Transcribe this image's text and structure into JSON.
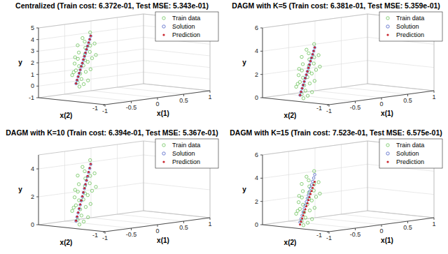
{
  "chart_data": [
    {
      "type": "scatter3d",
      "title": "Centralized (Train cost: 6.372e-01, Test MSE: 5.343e-01)",
      "xlabel": "x(1)",
      "zlabel": "x(2)",
      "ylabel": "y",
      "xlim": [
        -1,
        1
      ],
      "xticks": [
        -1,
        -0.5,
        0,
        0.5,
        1
      ],
      "zlim": [
        -1,
        1
      ],
      "zticks": [
        -1
      ],
      "ylim": [
        -1,
        5
      ],
      "yticks": [
        -1,
        0,
        1,
        2,
        3,
        4,
        5
      ],
      "grid": true,
      "legend": "upper right",
      "series": [
        {
          "name": "Train data",
          "color": "#6cc35a",
          "marker": "circle",
          "x": [
            -0.98,
            -0.95,
            -0.93,
            -0.96,
            -0.91,
            -0.9,
            -0.88,
            -0.92,
            -0.87,
            -0.85,
            -0.86,
            -0.83,
            -0.84,
            -0.81,
            -0.8,
            -0.82,
            -0.78,
            -0.77,
            -0.79,
            -0.75,
            -0.74,
            -0.76,
            -0.72,
            -0.71,
            -0.73,
            -0.69,
            -0.68,
            -0.7,
            -0.66,
            -0.65
          ],
          "z": [
            -0.2,
            -0.1,
            -0.25,
            0.05,
            -0.15,
            0.1,
            -0.3,
            0.0,
            -0.05,
            0.15,
            -0.2,
            0.05,
            -0.1,
            0.2,
            -0.25,
            0.1,
            -0.05,
            0.15,
            -0.15,
            0.0,
            -0.2,
            0.2,
            -0.1,
            0.05,
            -0.3,
            0.1,
            -0.05,
            0.15,
            -0.15,
            0.0
          ],
          "values": [
            0.3,
            0.6,
            0.5,
            1.2,
            0.9,
            1.4,
            0.8,
            1.6,
            1.3,
            2.1,
            1.5,
            1.9,
            2.0,
            2.6,
            1.7,
            2.5,
            2.4,
            3.0,
            2.3,
            2.9,
            2.6,
            3.6,
            3.1,
            3.4,
            2.9,
            3.9,
            3.6,
            4.2,
            3.8,
            4.7
          ]
        },
        {
          "name": "Solution",
          "color": "#4b5fc4",
          "marker": "circle",
          "x": [
            -0.95,
            -0.93,
            -0.91,
            -0.89,
            -0.87,
            -0.85,
            -0.83,
            -0.81,
            -0.79,
            -0.77,
            -0.75,
            -0.73,
            -0.71,
            -0.69,
            -0.67
          ],
          "z": [
            -0.05,
            -0.05,
            -0.05,
            -0.05,
            -0.05,
            -0.05,
            -0.05,
            -0.05,
            -0.05,
            -0.05,
            -0.05,
            -0.05,
            -0.05,
            -0.05,
            -0.05
          ],
          "values": [
            0.5,
            0.78,
            1.06,
            1.34,
            1.62,
            1.9,
            2.18,
            2.46,
            2.74,
            3.02,
            3.3,
            3.58,
            3.86,
            4.14,
            4.42
          ]
        },
        {
          "name": "Prediction",
          "color": "#c8232c",
          "marker": "dot",
          "x": [
            -0.95,
            -0.93,
            -0.91,
            -0.89,
            -0.87,
            -0.85,
            -0.83,
            -0.81,
            -0.79,
            -0.77,
            -0.75,
            -0.73,
            -0.71,
            -0.69,
            -0.67
          ],
          "z": [
            -0.05,
            -0.05,
            -0.05,
            -0.05,
            -0.05,
            -0.05,
            -0.05,
            -0.05,
            -0.05,
            -0.05,
            -0.05,
            -0.05,
            -0.05,
            -0.05,
            -0.05
          ],
          "values": [
            0.52,
            0.8,
            1.08,
            1.36,
            1.64,
            1.92,
            2.2,
            2.48,
            2.76,
            3.04,
            3.32,
            3.6,
            3.88,
            4.16,
            4.44
          ]
        }
      ]
    },
    {
      "type": "scatter3d",
      "title": "DAGM with K=5 (Train cost: 6.381e-01, Test MSE: 5.359e-01)",
      "xlabel": "x(1)",
      "zlabel": "x(2)",
      "ylabel": "y",
      "xlim": [
        -1,
        1
      ],
      "xticks": [
        -1,
        -0.5,
        0,
        0.5,
        1
      ],
      "zlim": [
        -1,
        1
      ],
      "zticks": [
        -1
      ],
      "ylim": [
        0,
        6
      ],
      "yticks": [
        0,
        2,
        4,
        6
      ],
      "grid": true,
      "legend": "upper right",
      "series": [
        {
          "name": "Train data",
          "color": "#6cc35a",
          "marker": "circle",
          "x": [
            -0.98,
            -0.95,
            -0.93,
            -0.96,
            -0.91,
            -0.9,
            -0.88,
            -0.92,
            -0.87,
            -0.85,
            -0.86,
            -0.83,
            -0.84,
            -0.81,
            -0.8,
            -0.82,
            -0.78,
            -0.77,
            -0.79,
            -0.75,
            -0.74,
            -0.76,
            -0.72,
            -0.71,
            -0.73,
            -0.69,
            -0.68,
            -0.7,
            -0.66,
            -0.65
          ],
          "z": [
            -0.2,
            -0.1,
            -0.25,
            0.05,
            -0.15,
            0.1,
            -0.3,
            0.0,
            -0.05,
            0.15,
            -0.2,
            0.05,
            -0.1,
            0.2,
            -0.25,
            0.1,
            -0.05,
            0.15,
            -0.15,
            0.0,
            -0.2,
            0.2,
            -0.1,
            0.05,
            -0.3,
            0.1,
            -0.05,
            0.15,
            -0.15,
            0.0
          ],
          "values": [
            0.3,
            0.6,
            0.5,
            1.2,
            0.9,
            1.4,
            0.8,
            1.6,
            1.3,
            2.1,
            1.5,
            1.9,
            2.0,
            2.6,
            1.7,
            2.5,
            2.4,
            3.0,
            2.3,
            2.9,
            2.6,
            3.6,
            3.1,
            3.4,
            2.9,
            3.9,
            3.6,
            4.2,
            3.8,
            4.7
          ]
        },
        {
          "name": "Solution",
          "color": "#4b5fc4",
          "marker": "circle",
          "x": [
            -0.95,
            -0.93,
            -0.91,
            -0.89,
            -0.87,
            -0.85,
            -0.83,
            -0.81,
            -0.79,
            -0.77,
            -0.75,
            -0.73,
            -0.71,
            -0.69,
            -0.67
          ],
          "z": [
            -0.05,
            -0.05,
            -0.05,
            -0.05,
            -0.05,
            -0.05,
            -0.05,
            -0.05,
            -0.05,
            -0.05,
            -0.05,
            -0.05,
            -0.05,
            -0.05,
            -0.05
          ],
          "values": [
            0.5,
            0.78,
            1.06,
            1.34,
            1.62,
            1.9,
            2.18,
            2.46,
            2.74,
            3.02,
            3.3,
            3.58,
            3.86,
            4.14,
            4.42
          ]
        },
        {
          "name": "Prediction",
          "color": "#c8232c",
          "marker": "dot",
          "x": [
            -0.95,
            -0.93,
            -0.91,
            -0.89,
            -0.87,
            -0.85,
            -0.83,
            -0.81,
            -0.79,
            -0.77,
            -0.75,
            -0.73,
            -0.71,
            -0.69,
            -0.67
          ],
          "z": [
            -0.05,
            -0.05,
            -0.05,
            -0.05,
            -0.05,
            -0.05,
            -0.05,
            -0.05,
            -0.05,
            -0.05,
            -0.05,
            -0.05,
            -0.05,
            -0.05,
            -0.05
          ],
          "values": [
            0.51,
            0.79,
            1.07,
            1.35,
            1.63,
            1.91,
            2.19,
            2.47,
            2.75,
            3.03,
            3.31,
            3.59,
            3.87,
            4.15,
            4.43
          ]
        }
      ]
    },
    {
      "type": "scatter3d",
      "title": "DAGM with K=10 (Train cost: 6.394e-01, Test MSE: 5.367e-01)",
      "xlabel": "x(1)",
      "zlabel": "x(2)",
      "ylabel": "y",
      "xlim": [
        -1,
        1
      ],
      "xticks": [
        -1,
        -0.5,
        0,
        0.5,
        1
      ],
      "zlim": [
        -1,
        1
      ],
      "zticks": [
        -1
      ],
      "ylim": [
        0,
        5
      ],
      "yticks": [
        0,
        2,
        4
      ],
      "grid": true,
      "legend": "upper right",
      "series": [
        {
          "name": "Train data",
          "color": "#6cc35a",
          "marker": "circle",
          "x": [
            -0.98,
            -0.95,
            -0.93,
            -0.96,
            -0.91,
            -0.9,
            -0.88,
            -0.92,
            -0.87,
            -0.85,
            -0.86,
            -0.83,
            -0.84,
            -0.81,
            -0.8,
            -0.82,
            -0.78,
            -0.77,
            -0.79,
            -0.75,
            -0.74,
            -0.76,
            -0.72,
            -0.71,
            -0.73,
            -0.69,
            -0.68,
            -0.7,
            -0.66,
            -0.65
          ],
          "z": [
            -0.2,
            -0.1,
            -0.25,
            0.05,
            -0.15,
            0.1,
            -0.3,
            0.0,
            -0.05,
            0.15,
            -0.2,
            0.05,
            -0.1,
            0.2,
            -0.25,
            0.1,
            -0.05,
            0.15,
            -0.15,
            0.0,
            -0.2,
            0.2,
            -0.1,
            0.05,
            -0.3,
            0.1,
            -0.05,
            0.15,
            -0.15,
            0.0
          ],
          "values": [
            0.3,
            0.6,
            0.5,
            1.2,
            0.9,
            1.4,
            0.8,
            1.6,
            1.3,
            2.1,
            1.5,
            1.9,
            2.0,
            2.6,
            1.7,
            2.5,
            2.4,
            3.0,
            2.3,
            2.9,
            2.6,
            3.6,
            3.1,
            3.4,
            2.9,
            3.9,
            3.6,
            4.2,
            3.8,
            4.7
          ]
        },
        {
          "name": "Solution",
          "color": "#4b5fc4",
          "marker": "circle",
          "x": [
            -0.95,
            -0.93,
            -0.91,
            -0.89,
            -0.87,
            -0.85,
            -0.83,
            -0.81,
            -0.79,
            -0.77,
            -0.75,
            -0.73,
            -0.71,
            -0.69,
            -0.67
          ],
          "z": [
            -0.05,
            -0.05,
            -0.05,
            -0.05,
            -0.05,
            -0.05,
            -0.05,
            -0.05,
            -0.05,
            -0.05,
            -0.05,
            -0.05,
            -0.05,
            -0.05,
            -0.05
          ],
          "values": [
            0.5,
            0.78,
            1.06,
            1.34,
            1.62,
            1.9,
            2.18,
            2.46,
            2.74,
            3.02,
            3.3,
            3.58,
            3.86,
            4.14,
            4.42
          ]
        },
        {
          "name": "Prediction",
          "color": "#c8232c",
          "marker": "dot",
          "x": [
            -0.95,
            -0.93,
            -0.91,
            -0.89,
            -0.87,
            -0.85,
            -0.83,
            -0.81,
            -0.79,
            -0.77,
            -0.75,
            -0.73,
            -0.71,
            -0.69,
            -0.67
          ],
          "z": [
            -0.05,
            -0.05,
            -0.05,
            -0.05,
            -0.05,
            -0.05,
            -0.05,
            -0.05,
            -0.05,
            -0.05,
            -0.05,
            -0.05,
            -0.05,
            -0.05,
            -0.05
          ],
          "values": [
            0.53,
            0.81,
            1.09,
            1.37,
            1.65,
            1.93,
            2.21,
            2.49,
            2.77,
            3.05,
            3.33,
            3.61,
            3.89,
            4.17,
            4.45
          ]
        }
      ]
    },
    {
      "type": "scatter3d",
      "title": "DAGM with K=15 (Train cost: 7.523e-01, Test MSE: 6.575e-01)",
      "xlabel": "x(1)",
      "zlabel": "x(2)",
      "ylabel": "y",
      "xlim": [
        -1,
        1
      ],
      "xticks": [
        -1,
        -0.5,
        0,
        0.5,
        1
      ],
      "zlim": [
        -1,
        1
      ],
      "zticks": [
        -1
      ],
      "ylim": [
        0,
        6
      ],
      "yticks": [
        0,
        2,
        4,
        6
      ],
      "grid": true,
      "legend": "upper right",
      "series": [
        {
          "name": "Train data",
          "color": "#6cc35a",
          "marker": "circle",
          "x": [
            -0.98,
            -0.95,
            -0.93,
            -0.96,
            -0.91,
            -0.9,
            -0.88,
            -0.92,
            -0.87,
            -0.85,
            -0.86,
            -0.83,
            -0.84,
            -0.81,
            -0.8,
            -0.82,
            -0.78,
            -0.77,
            -0.79,
            -0.75,
            -0.74,
            -0.76,
            -0.72,
            -0.71,
            -0.73,
            -0.69,
            -0.68,
            -0.7,
            -0.66,
            -0.65
          ],
          "z": [
            -0.2,
            -0.1,
            -0.25,
            0.05,
            -0.15,
            0.1,
            -0.3,
            0.0,
            -0.05,
            0.15,
            -0.2,
            0.05,
            -0.1,
            0.2,
            -0.25,
            0.1,
            -0.05,
            0.15,
            -0.15,
            0.0,
            -0.2,
            0.2,
            -0.1,
            0.05,
            -0.3,
            0.1,
            -0.05,
            0.15,
            -0.15,
            0.0
          ],
          "values": [
            0.3,
            0.6,
            0.5,
            1.2,
            0.9,
            1.4,
            0.8,
            1.6,
            1.3,
            2.1,
            1.5,
            1.9,
            2.0,
            2.6,
            1.7,
            2.5,
            2.4,
            3.0,
            2.3,
            2.9,
            2.6,
            3.6,
            3.1,
            3.4,
            2.9,
            3.9,
            3.6,
            4.2,
            3.8,
            4.7
          ]
        },
        {
          "name": "Solution",
          "color": "#4b5fc4",
          "marker": "circle",
          "x": [
            -0.95,
            -0.93,
            -0.91,
            -0.89,
            -0.87,
            -0.85,
            -0.83,
            -0.81,
            -0.79,
            -0.77,
            -0.75,
            -0.73,
            -0.71,
            -0.69,
            -0.67
          ],
          "z": [
            -0.05,
            -0.05,
            -0.05,
            -0.05,
            -0.05,
            -0.05,
            -0.05,
            -0.05,
            -0.05,
            -0.05,
            -0.05,
            -0.05,
            -0.05,
            -0.05,
            -0.05
          ],
          "values": [
            0.5,
            0.78,
            1.06,
            1.34,
            1.62,
            1.9,
            2.18,
            2.46,
            2.74,
            3.02,
            3.3,
            3.58,
            3.86,
            4.14,
            4.42
          ]
        },
        {
          "name": "Prediction",
          "color": "#c8232c",
          "marker": "dot",
          "x": [
            -0.95,
            -0.93,
            -0.91,
            -0.89,
            -0.87,
            -0.85,
            -0.83,
            -0.81,
            -0.79,
            -0.77,
            -0.75,
            -0.73,
            -0.71,
            -0.69,
            -0.67
          ],
          "z": [
            -0.05,
            -0.05,
            -0.05,
            -0.05,
            -0.05,
            -0.05,
            -0.05,
            -0.05,
            -0.05,
            -0.05,
            -0.05,
            -0.05,
            -0.05,
            -0.05,
            -0.05
          ],
          "values": [
            0.3,
            0.55,
            0.8,
            1.05,
            1.3,
            1.55,
            1.8,
            2.05,
            2.3,
            2.55,
            2.8,
            3.05,
            3.3,
            3.55,
            3.8
          ]
        }
      ]
    }
  ]
}
